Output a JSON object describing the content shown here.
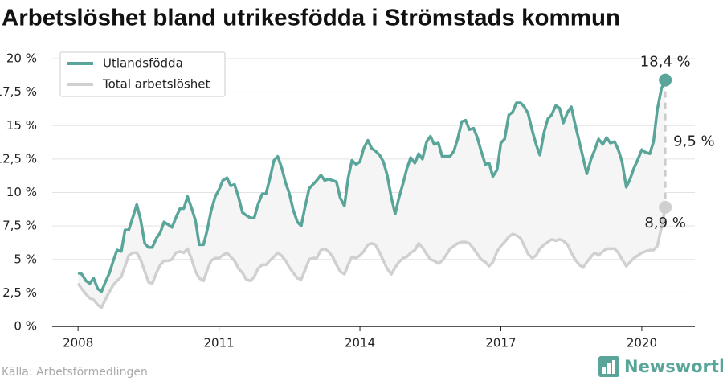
{
  "chart_data": {
    "type": "line",
    "title": "Arbetslöshet bland utrikesfödda i Strömstads kommun",
    "source": "Källa: Arbetsförmedlingen",
    "brand": "Newsworthy",
    "legend": "upper left",
    "grid": true,
    "xlim": [
      2007.45,
      2021.13
    ],
    "xticks": [
      2008,
      2011,
      2014,
      2017,
      2020
    ],
    "ylim": [
      0,
      20
    ],
    "yticks": [
      {
        "value": 0,
        "label": "0 %"
      },
      {
        "value": 2.5,
        "label": "2,5 %"
      },
      {
        "value": 5,
        "label": "5 %"
      },
      {
        "value": 7.5,
        "label": "7,5 %"
      },
      {
        "value": 10,
        "label": "10 %"
      },
      {
        "value": 12.5,
        "label": "12,5 %"
      },
      {
        "value": 15,
        "label": "15 %"
      },
      {
        "value": 17.5,
        "label": "17,5 %"
      },
      {
        "value": 20,
        "label": "20 %"
      }
    ],
    "x": [
      2008,
      2008.08,
      2008.17,
      2008.25,
      2008.33,
      2008.42,
      2008.5,
      2008.58,
      2008.67,
      2008.75,
      2008.83,
      2008.92,
      2009,
      2009.08,
      2009.17,
      2009.25,
      2009.33,
      2009.42,
      2009.5,
      2009.58,
      2009.67,
      2009.75,
      2009.83,
      2009.92,
      2010,
      2010.08,
      2010.17,
      2010.25,
      2010.33,
      2010.42,
      2010.5,
      2010.58,
      2010.67,
      2010.75,
      2010.83,
      2010.92,
      2011,
      2011.08,
      2011.17,
      2011.25,
      2011.33,
      2011.42,
      2011.5,
      2011.58,
      2011.67,
      2011.75,
      2011.83,
      2011.92,
      2012,
      2012.08,
      2012.17,
      2012.25,
      2012.33,
      2012.42,
      2012.5,
      2012.58,
      2012.67,
      2012.75,
      2012.83,
      2012.92,
      2013,
      2013.08,
      2013.17,
      2013.25,
      2013.33,
      2013.42,
      2013.5,
      2013.58,
      2013.67,
      2013.75,
      2013.83,
      2013.92,
      2014,
      2014.08,
      2014.17,
      2014.25,
      2014.33,
      2014.42,
      2014.5,
      2014.58,
      2014.67,
      2014.75,
      2014.83,
      2014.92,
      2015,
      2015.08,
      2015.17,
      2015.25,
      2015.33,
      2015.42,
      2015.5,
      2015.58,
      2015.67,
      2015.75,
      2015.83,
      2015.92,
      2016,
      2016.08,
      2016.17,
      2016.25,
      2016.33,
      2016.42,
      2016.5,
      2016.58,
      2016.67,
      2016.75,
      2016.83,
      2016.92,
      2017,
      2017.08,
      2017.17,
      2017.25,
      2017.33,
      2017.42,
      2017.5,
      2017.58,
      2017.67,
      2017.75,
      2017.83,
      2017.92,
      2018,
      2018.08,
      2018.17,
      2018.25,
      2018.33,
      2018.42,
      2018.5,
      2018.58,
      2018.67,
      2018.75,
      2018.83,
      2018.92,
      2019,
      2019.08,
      2019.17,
      2019.25,
      2019.33,
      2019.42,
      2019.5,
      2019.58,
      2019.67,
      2019.75,
      2019.83,
      2019.92,
      2020,
      2020.08,
      2020.17,
      2020.25,
      2020.33,
      2020.42,
      2020.5
    ],
    "series": [
      {
        "name": "Utlandsfödda",
        "color": "#5aa59a",
        "end_label": "18,4 %",
        "values": [
          4.0,
          3.9,
          3.4,
          3.2,
          3.6,
          2.8,
          2.6,
          3.3,
          4.0,
          4.9,
          5.7,
          5.6,
          7.2,
          7.2,
          8.2,
          9.1,
          8.0,
          6.2,
          5.9,
          5.9,
          6.6,
          7.0,
          7.8,
          7.6,
          7.4,
          8.1,
          8.8,
          8.8,
          9.7,
          8.8,
          7.9,
          6.1,
          6.1,
          7.2,
          8.6,
          9.7,
          10.2,
          10.9,
          11.1,
          10.5,
          10.6,
          9.6,
          8.5,
          8.3,
          8.1,
          8.1,
          9.1,
          9.9,
          9.9,
          11.0,
          12.4,
          12.7,
          11.9,
          10.7,
          9.9,
          8.7,
          7.8,
          7.5,
          8.9,
          10.3,
          10.6,
          10.9,
          11.3,
          10.9,
          11.0,
          10.9,
          10.8,
          9.6,
          9.0,
          11.1,
          12.4,
          12.1,
          12.3,
          13.3,
          13.9,
          13.3,
          13.1,
          12.8,
          12.3,
          11.3,
          9.6,
          8.4,
          9.6,
          10.7,
          11.8,
          12.6,
          12.2,
          12.9,
          12.5,
          13.8,
          14.2,
          13.6,
          13.7,
          12.7,
          12.7,
          12.7,
          13.1,
          14.0,
          15.3,
          15.4,
          14.7,
          14.8,
          14.1,
          13.1,
          12.1,
          12.2,
          11.2,
          11.7,
          13.7,
          14.0,
          15.8,
          16.0,
          16.7,
          16.7,
          16.4,
          15.9,
          14.6,
          13.6,
          12.8,
          14.5,
          15.5,
          15.8,
          16.5,
          16.3,
          15.2,
          16.0,
          16.4,
          15.1,
          13.8,
          12.6,
          11.4,
          12.5,
          13.2,
          14.0,
          13.6,
          14.1,
          13.7,
          13.8,
          13.2,
          12.3,
          10.4,
          11.0,
          11.8,
          12.5,
          13.2,
          13.0,
          12.9,
          13.8,
          16.2,
          17.8,
          18.4
        ]
      },
      {
        "name": "Total arbetslöshet",
        "color": "#d0d0d0",
        "end_label": "8,9 %",
        "values": [
          3.2,
          2.8,
          2.4,
          2.1,
          2.0,
          1.6,
          1.4,
          2.0,
          2.6,
          3.1,
          3.4,
          3.7,
          4.5,
          5.3,
          5.5,
          5.5,
          5.0,
          4.1,
          3.3,
          3.2,
          4.0,
          4.6,
          4.9,
          4.9,
          5.0,
          5.5,
          5.6,
          5.5,
          5.8,
          5.0,
          4.1,
          3.6,
          3.4,
          4.2,
          4.9,
          5.1,
          5.1,
          5.3,
          5.5,
          5.2,
          4.9,
          4.3,
          4.0,
          3.5,
          3.4,
          3.7,
          4.3,
          4.6,
          4.6,
          4.9,
          5.2,
          5.5,
          5.3,
          4.9,
          4.4,
          4.0,
          3.6,
          3.5,
          4.2,
          5.0,
          5.1,
          5.1,
          5.7,
          5.8,
          5.6,
          5.2,
          4.6,
          4.1,
          3.9,
          4.6,
          5.2,
          5.1,
          5.3,
          5.6,
          6.1,
          6.2,
          6.1,
          5.5,
          4.9,
          4.3,
          3.9,
          4.4,
          4.8,
          5.1,
          5.2,
          5.5,
          5.7,
          6.2,
          5.9,
          5.4,
          5.0,
          4.9,
          4.7,
          4.9,
          5.3,
          5.8,
          6.0,
          6.2,
          6.3,
          6.3,
          6.2,
          5.8,
          5.4,
          5.0,
          4.8,
          4.5,
          4.8,
          5.6,
          6.0,
          6.3,
          6.7,
          6.9,
          6.8,
          6.6,
          6.0,
          5.4,
          5.1,
          5.3,
          5.8,
          6.1,
          6.3,
          6.5,
          6.4,
          6.5,
          6.4,
          6.1,
          5.5,
          5.0,
          4.6,
          4.4,
          4.8,
          5.2,
          5.5,
          5.3,
          5.6,
          5.8,
          5.8,
          5.8,
          5.5,
          5.0,
          4.5,
          4.8,
          5.1,
          5.3,
          5.5,
          5.6,
          5.7,
          5.7,
          6.0,
          7.4,
          8.9
        ]
      }
    ],
    "gap_label": {
      "value": 9.5,
      "label": "9,5 %"
    }
  }
}
